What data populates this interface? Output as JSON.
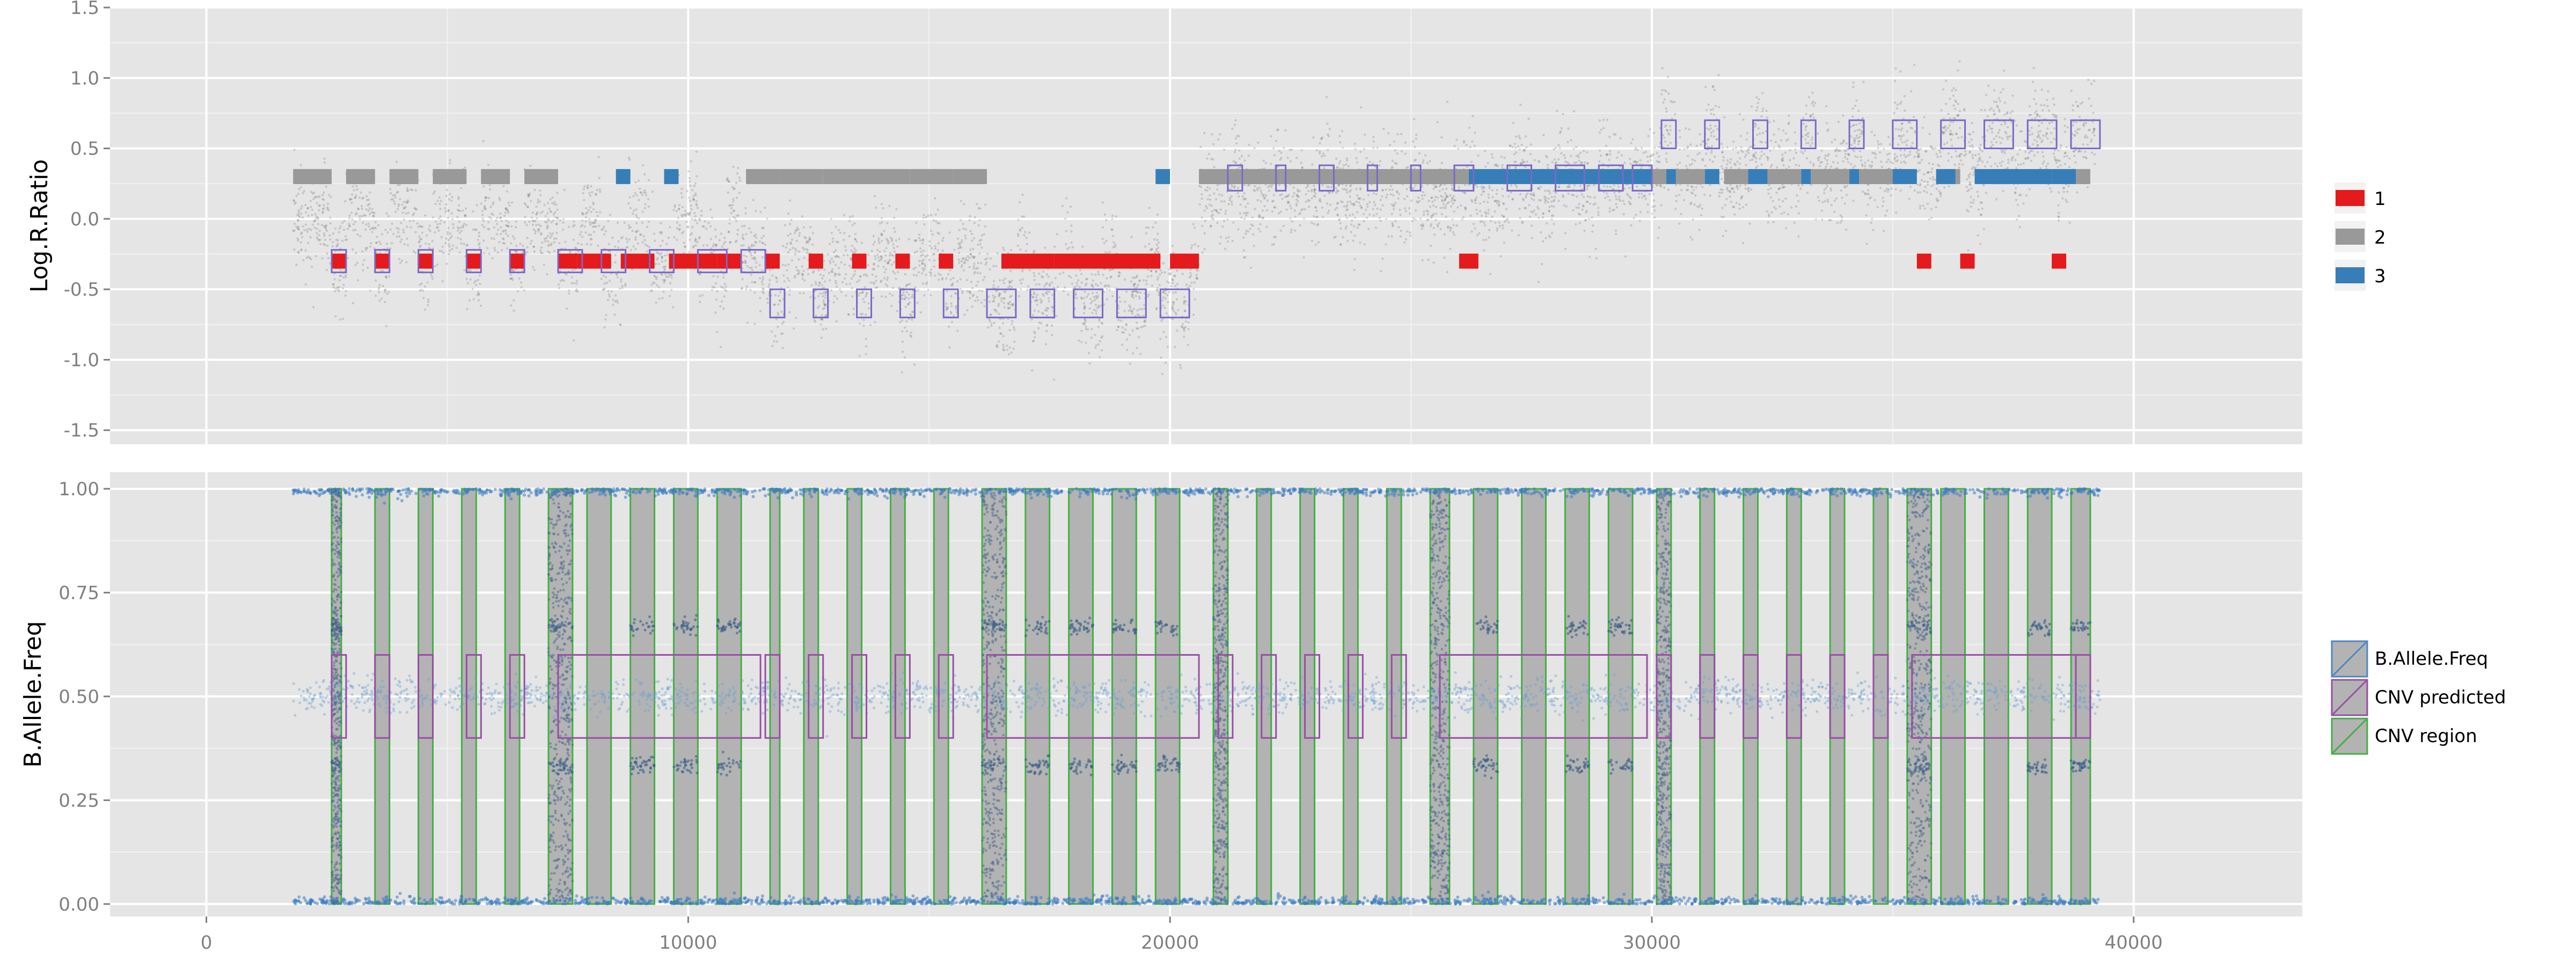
{
  "chart_data": [
    {
      "panel": "top",
      "type": "scatter",
      "ylabel": "Log.R.Ratio",
      "ylim": [
        -1.6,
        1.5
      ],
      "xlim": [
        -2000,
        43500
      ],
      "yticks": [
        -1.5,
        -1.0,
        -0.5,
        0.0,
        0.5,
        1.0,
        1.5
      ],
      "ytick_labels": [
        "-1.5",
        "-1.0",
        "-0.5",
        "0.0",
        "0.5",
        "1.0",
        "1.5"
      ],
      "grid": true,
      "legend_position": "right",
      "legend": [
        {
          "label": "1",
          "color": "#e41a1c"
        },
        {
          "label": "2",
          "color": "#999999"
        },
        {
          "label": "3",
          "color": "#377eb8"
        }
      ],
      "state_segments": {
        "state1_y": -0.3,
        "state2_y": 0.3,
        "state3_y": 0.3,
        "state1": [
          [
            2600,
            2900
          ],
          [
            3500,
            3800
          ],
          [
            4400,
            4700
          ],
          [
            5400,
            5700
          ],
          [
            6300,
            6600
          ],
          [
            7300,
            7700
          ],
          [
            7700,
            8400
          ],
          [
            8600,
            9300
          ],
          [
            9600,
            10600
          ],
          [
            10600,
            11100
          ],
          [
            11600,
            11900
          ],
          [
            12500,
            12800
          ],
          [
            13400,
            13700
          ],
          [
            14300,
            14600
          ],
          [
            15200,
            15500
          ],
          [
            16500,
            17600
          ],
          [
            17600,
            19800
          ],
          [
            20000,
            20600
          ],
          [
            26000,
            26400
          ],
          [
            35500,
            35800
          ],
          [
            36400,
            36700
          ],
          [
            38300,
            38600
          ]
        ],
        "state2": [
          [
            1800,
            2600
          ],
          [
            2900,
            3500
          ],
          [
            3800,
            4400
          ],
          [
            4700,
            5400
          ],
          [
            5700,
            6300
          ],
          [
            6600,
            7300
          ],
          [
            11200,
            11900
          ],
          [
            11900,
            12800
          ],
          [
            12800,
            13700
          ],
          [
            13700,
            14600
          ],
          [
            14600,
            15500
          ],
          [
            15500,
            16200
          ],
          [
            20600,
            21200
          ],
          [
            21200,
            22300
          ],
          [
            22300,
            24300
          ],
          [
            24300,
            26200
          ],
          [
            29900,
            30300
          ],
          [
            30500,
            31100
          ],
          [
            31500,
            32100
          ],
          [
            32400,
            33100
          ],
          [
            33300,
            34100
          ],
          [
            34300,
            35100
          ],
          [
            36000,
            36400
          ],
          [
            37100,
            37400
          ],
          [
            38800,
            39100
          ]
        ],
        "state3": [
          [
            8500,
            8800
          ],
          [
            9500,
            9800
          ],
          [
            19700,
            20000
          ],
          [
            26200,
            30000
          ],
          [
            30300,
            30500
          ],
          [
            31100,
            31400
          ],
          [
            32000,
            32400
          ],
          [
            33100,
            33300
          ],
          [
            34100,
            34300
          ],
          [
            35000,
            35500
          ],
          [
            35900,
            36300
          ],
          [
            36700,
            38300
          ],
          [
            38300,
            38800
          ]
        ]
      },
      "cnv_boxes_y": {
        "low": [
          -0.38,
          -0.22
        ],
        "lowest": [
          -0.7,
          -0.5
        ],
        "high": [
          0.2,
          0.38
        ],
        "highest": [
          0.5,
          0.7
        ]
      },
      "cnv_boxes": {
        "low": [
          [
            2600,
            2900
          ],
          [
            3500,
            3800
          ],
          [
            4400,
            4700
          ],
          [
            5400,
            5700
          ],
          [
            6300,
            6600
          ],
          [
            7300,
            7800
          ],
          [
            8200,
            8700
          ],
          [
            9200,
            9700
          ],
          [
            10200,
            10800
          ],
          [
            11100,
            11600
          ]
        ],
        "lowest": [
          [
            11700,
            12000
          ],
          [
            12600,
            12900
          ],
          [
            13500,
            13800
          ],
          [
            14400,
            14700
          ],
          [
            15300,
            15600
          ],
          [
            16200,
            16800
          ],
          [
            17100,
            17600
          ],
          [
            18000,
            18600
          ],
          [
            18900,
            19500
          ],
          [
            19800,
            20400
          ]
        ],
        "high": [
          [
            21200,
            21500
          ],
          [
            22200,
            22400
          ],
          [
            23100,
            23400
          ],
          [
            24100,
            24300
          ],
          [
            25000,
            25200
          ],
          [
            25900,
            26300
          ],
          [
            27000,
            27500
          ],
          [
            28000,
            28600
          ],
          [
            28900,
            29400
          ],
          [
            29600,
            30000
          ]
        ],
        "highest": [
          [
            30200,
            30500
          ],
          [
            31100,
            31400
          ],
          [
            32100,
            32400
          ],
          [
            33100,
            33400
          ],
          [
            34100,
            34400
          ],
          [
            35000,
            35500
          ],
          [
            36000,
            36500
          ],
          [
            36900,
            37500
          ],
          [
            37800,
            38400
          ],
          [
            38700,
            39300
          ]
        ]
      }
    },
    {
      "panel": "bottom",
      "type": "scatter",
      "ylabel": "B.Allele.Freq",
      "ylim": [
        -0.03,
        1.04
      ],
      "xlim": [
        -2000,
        43500
      ],
      "yticks": [
        0.0,
        0.25,
        0.5,
        0.75,
        1.0
      ],
      "ytick_labels": [
        "0.00",
        "0.25",
        "0.50",
        "0.75",
        "1.00"
      ],
      "xticks": [
        0,
        10000,
        20000,
        30000,
        40000
      ],
      "xtick_labels": [
        "0",
        "10000",
        "20000",
        "30000",
        "40000"
      ],
      "grid": true,
      "legend_position": "right",
      "legend": [
        {
          "label": "B.Allele.Freq",
          "color": "#4d88c4"
        },
        {
          "label": "CNV predicted",
          "color": "#9a4da6"
        },
        {
          "label": "CNV region",
          "color": "#43b043"
        }
      ],
      "baf_data_range": [
        1800,
        39300
      ],
      "cnv_predicted_y": [
        0.4,
        0.6
      ],
      "cnv_predicted": [
        [
          2600,
          2900
        ],
        [
          3500,
          3800
        ],
        [
          4400,
          4700
        ],
        [
          5400,
          5700
        ],
        [
          6300,
          6600
        ],
        [
          7300,
          11500
        ],
        [
          11600,
          11900
        ],
        [
          12500,
          12800
        ],
        [
          13400,
          13700
        ],
        [
          14300,
          14600
        ],
        [
          15200,
          15500
        ],
        [
          16200,
          20600
        ],
        [
          21000,
          21300
        ],
        [
          21900,
          22200
        ],
        [
          22800,
          23100
        ],
        [
          23700,
          24000
        ],
        [
          24600,
          24900
        ],
        [
          25600,
          29900
        ],
        [
          30100,
          30400
        ],
        [
          31000,
          31300
        ],
        [
          31900,
          32200
        ],
        [
          32800,
          33100
        ],
        [
          33700,
          34000
        ],
        [
          34600,
          34900
        ],
        [
          35400,
          38800
        ],
        [
          38800,
          39100
        ]
      ],
      "cnv_regions": [
        [
          2600,
          2800
        ],
        [
          3500,
          3800
        ],
        [
          4400,
          4700
        ],
        [
          5300,
          5600
        ],
        [
          6200,
          6500
        ],
        [
          7100,
          7600
        ],
        [
          7900,
          8400
        ],
        [
          8800,
          9300
        ],
        [
          9700,
          10200
        ],
        [
          10600,
          11100
        ],
        [
          11700,
          11900
        ],
        [
          12400,
          12700
        ],
        [
          13300,
          13600
        ],
        [
          14200,
          14500
        ],
        [
          15100,
          15400
        ],
        [
          16100,
          16600
        ],
        [
          17000,
          17500
        ],
        [
          17900,
          18400
        ],
        [
          18800,
          19300
        ],
        [
          19700,
          20200
        ],
        [
          20900,
          21200
        ],
        [
          21800,
          22100
        ],
        [
          22700,
          23000
        ],
        [
          23600,
          23900
        ],
        [
          24500,
          24800
        ],
        [
          25400,
          25800
        ],
        [
          26300,
          26800
        ],
        [
          27300,
          27800
        ],
        [
          28200,
          28700
        ],
        [
          29100,
          29600
        ],
        [
          30100,
          30400
        ],
        [
          31000,
          31300
        ],
        [
          31900,
          32200
        ],
        [
          32800,
          33100
        ],
        [
          33700,
          34000
        ],
        [
          34600,
          34900
        ],
        [
          35300,
          35800
        ],
        [
          36000,
          36500
        ],
        [
          36900,
          37400
        ],
        [
          37800,
          38300
        ],
        [
          38700,
          39100
        ]
      ],
      "dense_regions": [
        [
          2600,
          2800
        ],
        [
          7100,
          7600
        ],
        [
          16100,
          16600
        ],
        [
          20900,
          21200
        ],
        [
          25400,
          25800
        ],
        [
          30100,
          30400
        ],
        [
          35300,
          35800
        ]
      ]
    }
  ]
}
